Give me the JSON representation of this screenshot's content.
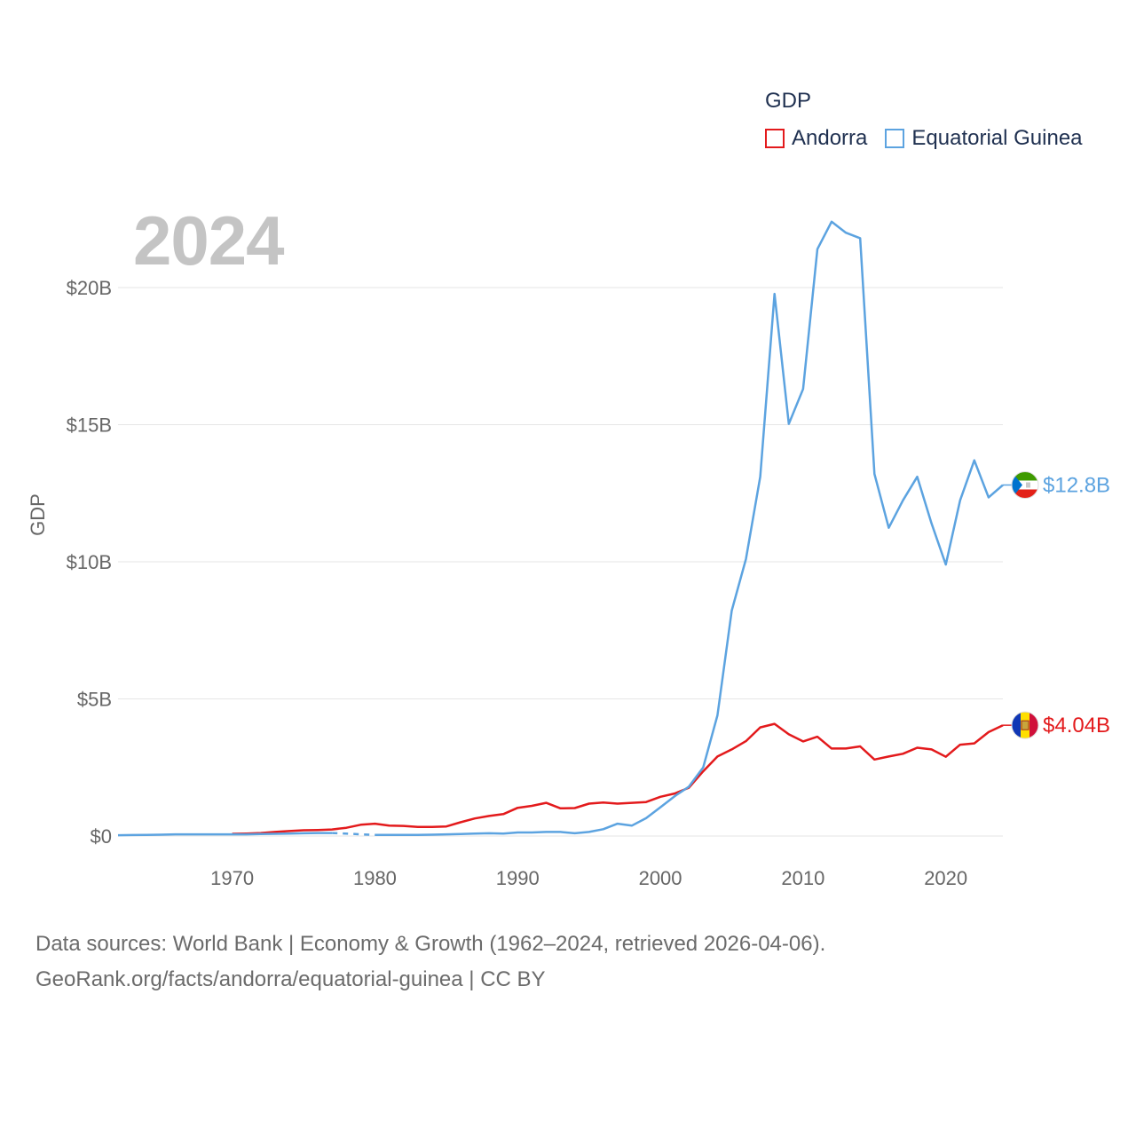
{
  "chart_data": {
    "type": "line",
    "title": "",
    "legend_title": "GDP",
    "year_label": "2024",
    "ylabel": "GDP",
    "xlabel": "",
    "xlim": [
      1962,
      2024
    ],
    "ylim": [
      0,
      20
    ],
    "y_unit": "billion USD",
    "x_ticks": [
      1970,
      1980,
      1990,
      2000,
      2010,
      2020
    ],
    "y_ticks": [
      {
        "value": 0,
        "label": "$0"
      },
      {
        "value": 5,
        "label": "$5B"
      },
      {
        "value": 10,
        "label": "$10B"
      },
      {
        "value": 15,
        "label": "$15B"
      },
      {
        "value": 20,
        "label": "$20B"
      }
    ],
    "series": [
      {
        "name": "Andorra",
        "color": "#e31a1c",
        "end_label": "$4.04B",
        "flag": "andorra-flag",
        "points": [
          [
            1970,
            0.08
          ],
          [
            1971,
            0.09
          ],
          [
            1972,
            0.11
          ],
          [
            1973,
            0.15
          ],
          [
            1974,
            0.18
          ],
          [
            1975,
            0.21
          ],
          [
            1976,
            0.22
          ],
          [
            1977,
            0.24
          ],
          [
            1978,
            0.3
          ],
          [
            1979,
            0.41
          ],
          [
            1980,
            0.45
          ],
          [
            1981,
            0.38
          ],
          [
            1982,
            0.37
          ],
          [
            1983,
            0.33
          ],
          [
            1984,
            0.33
          ],
          [
            1985,
            0.35
          ],
          [
            1986,
            0.5
          ],
          [
            1987,
            0.64
          ],
          [
            1988,
            0.73
          ],
          [
            1989,
            0.8
          ],
          [
            1990,
            1.03
          ],
          [
            1991,
            1.1
          ],
          [
            1992,
            1.21
          ],
          [
            1993,
            1.01
          ],
          [
            1994,
            1.02
          ],
          [
            1995,
            1.18
          ],
          [
            1996,
            1.22
          ],
          [
            1997,
            1.18
          ],
          [
            1998,
            1.21
          ],
          [
            1999,
            1.24
          ],
          [
            2000,
            1.43
          ],
          [
            2001,
            1.55
          ],
          [
            2002,
            1.76
          ],
          [
            2003,
            2.36
          ],
          [
            2004,
            2.9
          ],
          [
            2005,
            3.16
          ],
          [
            2006,
            3.46
          ],
          [
            2007,
            3.96
          ],
          [
            2008,
            4.09
          ],
          [
            2009,
            3.71
          ],
          [
            2010,
            3.45
          ],
          [
            2011,
            3.62
          ],
          [
            2012,
            3.19
          ],
          [
            2013,
            3.19
          ],
          [
            2014,
            3.27
          ],
          [
            2015,
            2.79
          ],
          [
            2016,
            2.9
          ],
          [
            2017,
            3.0
          ],
          [
            2018,
            3.22
          ],
          [
            2019,
            3.16
          ],
          [
            2020,
            2.89
          ],
          [
            2021,
            3.33
          ],
          [
            2022,
            3.38
          ],
          [
            2023,
            3.79
          ],
          [
            2024,
            4.04
          ]
        ]
      },
      {
        "name": "Equatorial Guinea",
        "color": "#5ca3e0",
        "end_label": "$12.8B",
        "flag": "equatorial-guinea-flag",
        "gap": [
          1977,
          1980
        ],
        "points": [
          [
            1962,
            0.03
          ],
          [
            1963,
            0.035
          ],
          [
            1964,
            0.04
          ],
          [
            1965,
            0.05
          ],
          [
            1966,
            0.06
          ],
          [
            1967,
            0.06
          ],
          [
            1968,
            0.06
          ],
          [
            1969,
            0.06
          ],
          [
            1970,
            0.06
          ],
          [
            1971,
            0.06
          ],
          [
            1972,
            0.07
          ],
          [
            1973,
            0.08
          ],
          [
            1974,
            0.09
          ],
          [
            1975,
            0.1
          ],
          [
            1976,
            0.11
          ],
          [
            1977,
            0.11
          ],
          [
            1980,
            0.04
          ],
          [
            1981,
            0.04
          ],
          [
            1982,
            0.04
          ],
          [
            1983,
            0.04
          ],
          [
            1984,
            0.05
          ],
          [
            1985,
            0.06
          ],
          [
            1986,
            0.07
          ],
          [
            1987,
            0.09
          ],
          [
            1988,
            0.1
          ],
          [
            1989,
            0.09
          ],
          [
            1990,
            0.13
          ],
          [
            1991,
            0.13
          ],
          [
            1992,
            0.15
          ],
          [
            1993,
            0.15
          ],
          [
            1994,
            0.1
          ],
          [
            1995,
            0.15
          ],
          [
            1996,
            0.25
          ],
          [
            1997,
            0.45
          ],
          [
            1998,
            0.38
          ],
          [
            1999,
            0.65
          ],
          [
            2000,
            1.05
          ],
          [
            2001,
            1.45
          ],
          [
            2002,
            1.8
          ],
          [
            2003,
            2.5
          ],
          [
            2004,
            4.4
          ],
          [
            2005,
            8.22
          ],
          [
            2006,
            10.1
          ],
          [
            2007,
            13.1
          ],
          [
            2008,
            19.77
          ],
          [
            2009,
            15.03
          ],
          [
            2010,
            16.3
          ],
          [
            2011,
            21.4
          ],
          [
            2012,
            22.4
          ],
          [
            2013,
            22.0
          ],
          [
            2014,
            21.8
          ],
          [
            2015,
            13.2
          ],
          [
            2016,
            11.24
          ],
          [
            2017,
            12.24
          ],
          [
            2018,
            13.1
          ],
          [
            2019,
            11.4
          ],
          [
            2020,
            9.9
          ],
          [
            2021,
            12.24
          ],
          [
            2022,
            13.7
          ],
          [
            2023,
            12.35
          ],
          [
            2024,
            12.8
          ]
        ]
      }
    ]
  },
  "source": {
    "line1": "Data sources: World Bank | Economy & Growth (1962–2024, retrieved 2026-04-06).",
    "line2": "GeoRank.org/facts/andorra/equatorial-guinea | CC BY"
  }
}
